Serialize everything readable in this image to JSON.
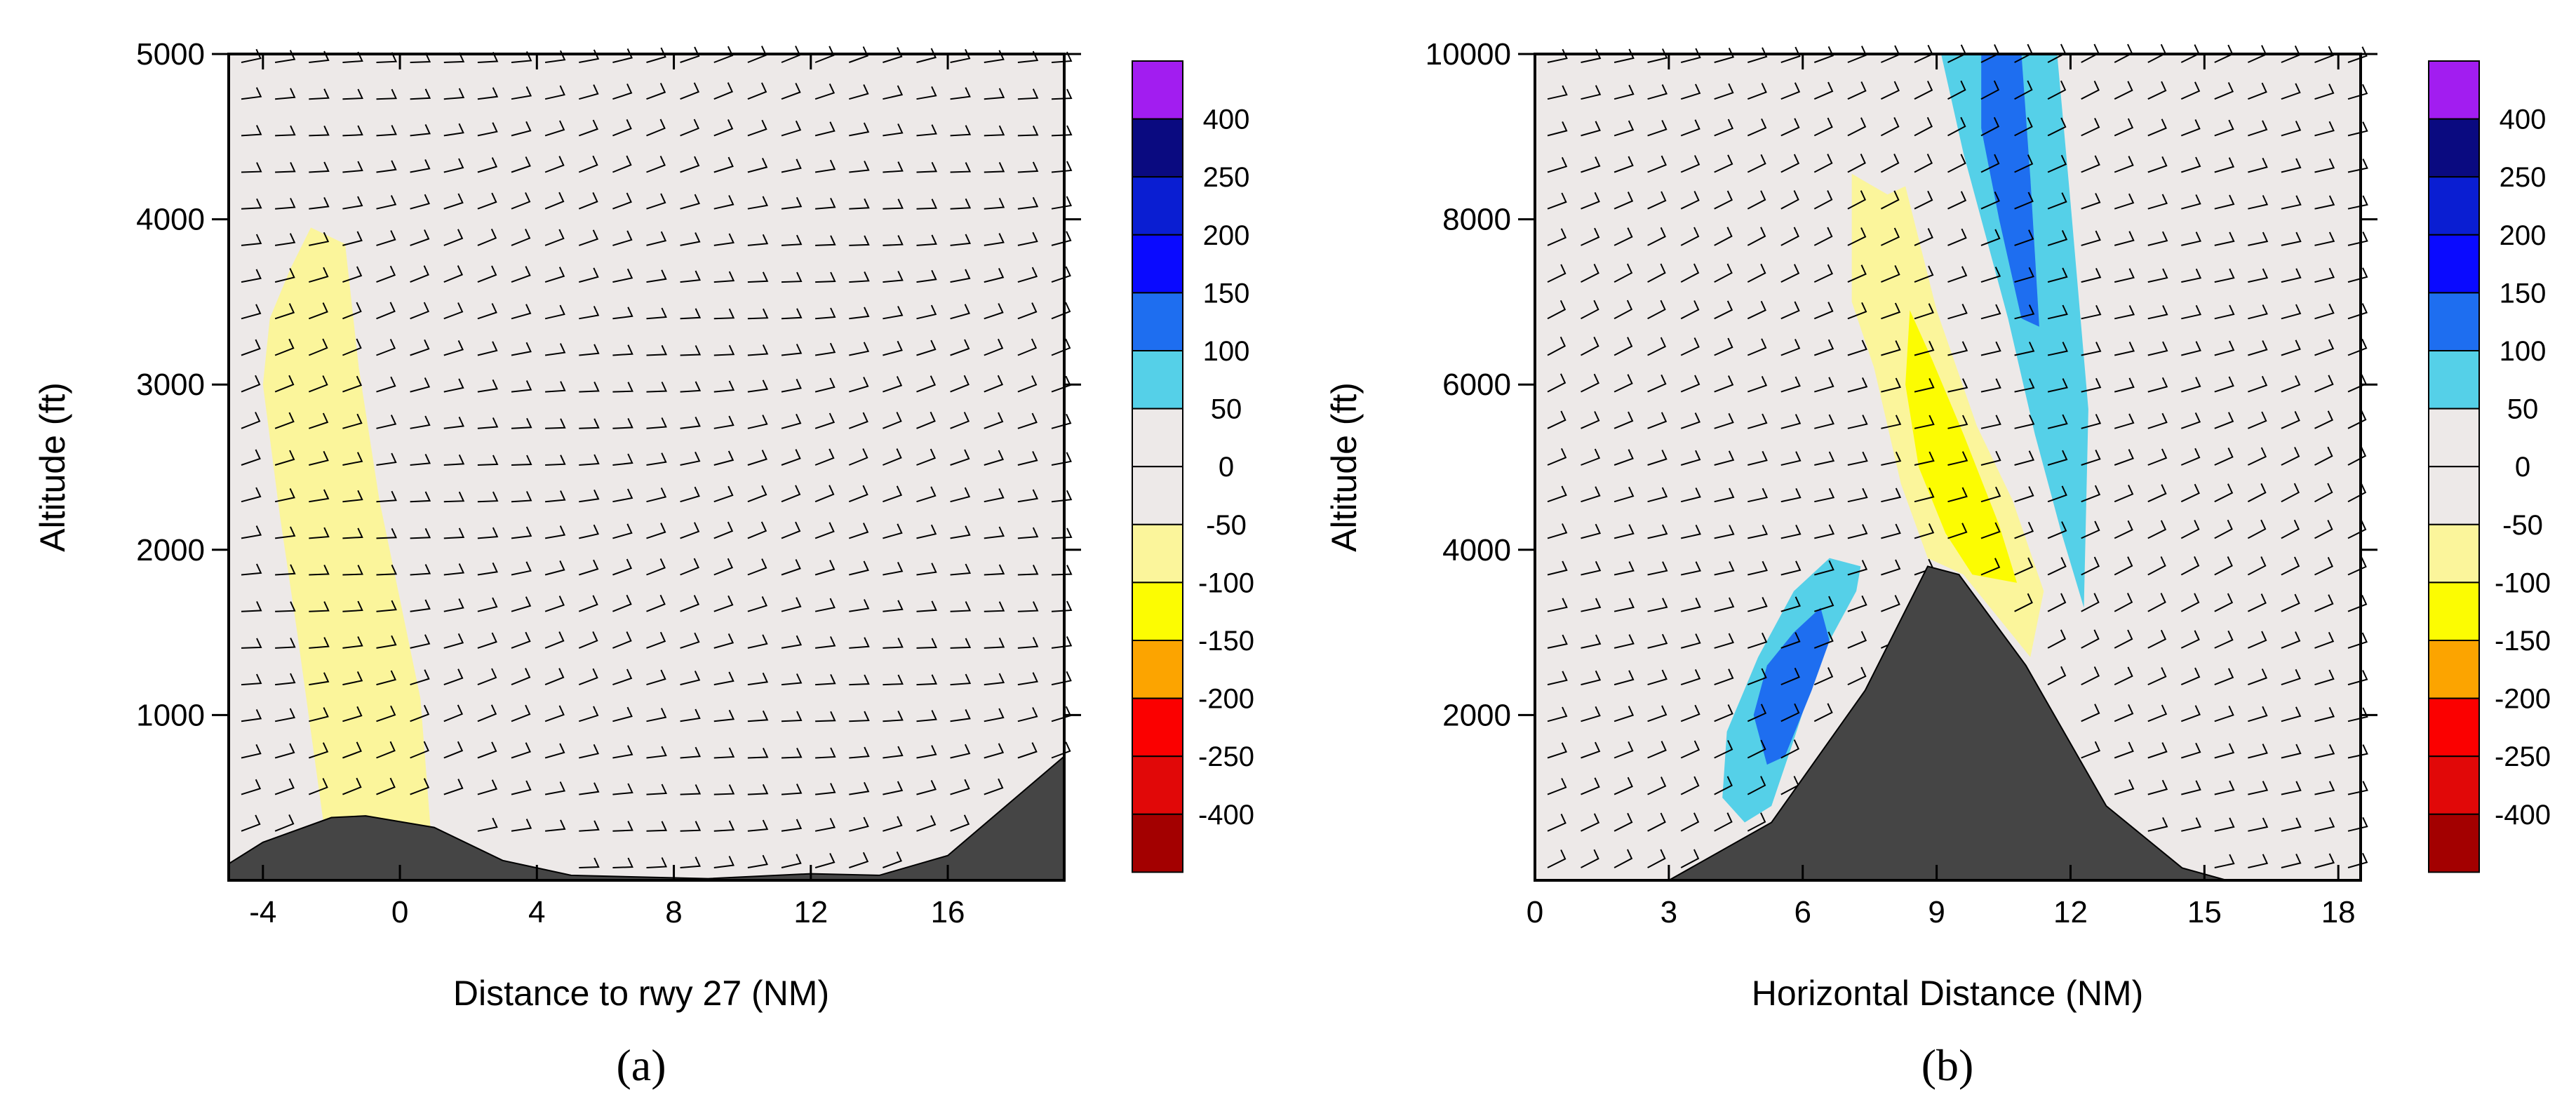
{
  "colorbar": {
    "labels": [
      "400",
      "250",
      "200",
      "150",
      "100",
      "50",
      "0",
      "-50",
      "-100",
      "-150",
      "-200",
      "-250",
      "-400"
    ],
    "colors": [
      "#a21df0",
      "#0a0a80",
      "#0a1ed2",
      "#0a0aff",
      "#1e6ef0",
      "#55d0e8",
      "#ede9e8",
      "#ede9e8",
      "#fbf59b",
      "#fcfc02",
      "#fca400",
      "#fb0000",
      "#e10808",
      "#a30000"
    ]
  },
  "chart_data": [
    {
      "type": "contour",
      "panel_caption": "(a)",
      "xlabel": "Distance to rwy 27 (NM)",
      "ylabel": "Altitude (ft)",
      "xlim": [
        -5,
        19.4
      ],
      "ylim": [
        0,
        5000
      ],
      "x_ticks": [
        "-4",
        "0",
        "4",
        "8",
        "12",
        "16"
      ],
      "y_ticks": [
        "1000",
        "2000",
        "3000",
        "4000",
        "5000"
      ],
      "terrain_profile_ft": [
        [
          -5,
          100
        ],
        [
          -4,
          230
        ],
        [
          -2,
          380
        ],
        [
          -1,
          390
        ],
        [
          1,
          320
        ],
        [
          3,
          120
        ],
        [
          5,
          30
        ],
        [
          9,
          10
        ],
        [
          12,
          40
        ],
        [
          14,
          30
        ],
        [
          16,
          150
        ],
        [
          19.4,
          750
        ]
      ],
      "contours": [
        {
          "level": "-50 to -100",
          "color": "#fbf59b",
          "polygon": [
            [
              -2.6,
              3950
            ],
            [
              -1.6,
              3850
            ],
            [
              -1.2,
              3100
            ],
            [
              -0.6,
              2300
            ],
            [
              0.0,
              1700
            ],
            [
              0.6,
              1100
            ],
            [
              0.9,
              300
            ],
            [
              -2.2,
              300
            ],
            [
              -3.0,
              1500
            ],
            [
              -3.5,
              2200
            ],
            [
              -4.0,
              3000
            ],
            [
              -3.8,
              3400
            ],
            [
              -3.2,
              3700
            ]
          ]
        }
      ]
    },
    {
      "type": "contour",
      "panel_caption": "(b)",
      "xlabel": "Horizontal Distance (NM)",
      "ylabel": "Altitude (ft)",
      "xlim": [
        0,
        18.5
      ],
      "ylim": [
        0,
        10000
      ],
      "x_ticks": [
        "0",
        "3",
        "6",
        "9",
        "12",
        "15",
        "18"
      ],
      "y_ticks": [
        "2000",
        "4000",
        "6000",
        "8000",
        "10000"
      ],
      "terrain_profile_ft": [
        [
          0,
          0
        ],
        [
          3,
          0
        ],
        [
          5.3,
          700
        ],
        [
          7.4,
          2300
        ],
        [
          8.8,
          3800
        ],
        [
          9.5,
          3700
        ],
        [
          11.0,
          2600
        ],
        [
          12.8,
          900
        ],
        [
          14.5,
          150
        ],
        [
          15.5,
          0
        ],
        [
          18.5,
          0
        ]
      ],
      "contours": [
        {
          "level": "-50 to -100",
          "color": "#fbf59b",
          "polygon": [
            [
              7.1,
              8550
            ],
            [
              7.9,
              8300
            ],
            [
              8.3,
              8400
            ],
            [
              9.0,
              6900
            ],
            [
              9.9,
              5500
            ],
            [
              10.7,
              4600
            ],
            [
              11.4,
              3500
            ],
            [
              11.1,
              2700
            ],
            [
              9.6,
              3700
            ],
            [
              8.8,
              3900
            ],
            [
              8.2,
              4800
            ],
            [
              7.6,
              6200
            ],
            [
              7.1,
              7000
            ]
          ]
        },
        {
          "level": "-100 to -150",
          "color": "#fcfc02",
          "polygon": [
            [
              8.4,
              6900
            ],
            [
              8.9,
              6300
            ],
            [
              9.6,
              5400
            ],
            [
              10.4,
              4300
            ],
            [
              10.8,
              3600
            ],
            [
              9.8,
              3700
            ],
            [
              9.2,
              4200
            ],
            [
              8.6,
              5000
            ],
            [
              8.3,
              6000
            ]
          ]
        },
        {
          "level": "50 to 100",
          "color": "#55d0e8",
          "polygon": [
            [
              9.1,
              10000
            ],
            [
              11.7,
              10000
            ],
            [
              12.0,
              8200
            ],
            [
              12.4,
              5700
            ],
            [
              12.3,
              3300
            ],
            [
              11.8,
              4200
            ],
            [
              11.2,
              5400
            ],
            [
              10.6,
              6800
            ],
            [
              10.1,
              7800
            ],
            [
              9.6,
              8800
            ]
          ]
        },
        {
          "level": "100 to 150",
          "color": "#1e6ef0",
          "polygon": [
            [
              10.0,
              10000
            ],
            [
              10.9,
              10000
            ],
            [
              11.1,
              8500
            ],
            [
              11.3,
              6700
            ],
            [
              10.9,
              6800
            ],
            [
              10.4,
              8000
            ],
            [
              10.0,
              9100
            ]
          ]
        },
        {
          "level": "50 to 100",
          "color": "#55d0e8",
          "polygon": [
            [
              6.6,
              3900
            ],
            [
              7.3,
              3800
            ],
            [
              7.2,
              3500
            ],
            [
              6.4,
              2700
            ],
            [
              5.8,
              1700
            ],
            [
              5.3,
              900
            ],
            [
              4.7,
              700
            ],
            [
              4.2,
              1000
            ],
            [
              4.3,
              1800
            ],
            [
              5.0,
              2700
            ],
            [
              5.8,
              3500
            ]
          ]
        },
        {
          "level": "100 to 150",
          "color": "#1e6ef0",
          "polygon": [
            [
              6.4,
              3300
            ],
            [
              6.6,
              2900
            ],
            [
              6.2,
              2300
            ],
            [
              5.6,
              1500
            ],
            [
              5.2,
              1400
            ],
            [
              4.9,
              2000
            ],
            [
              5.2,
              2600
            ],
            [
              5.8,
              3000
            ]
          ]
        }
      ]
    }
  ]
}
